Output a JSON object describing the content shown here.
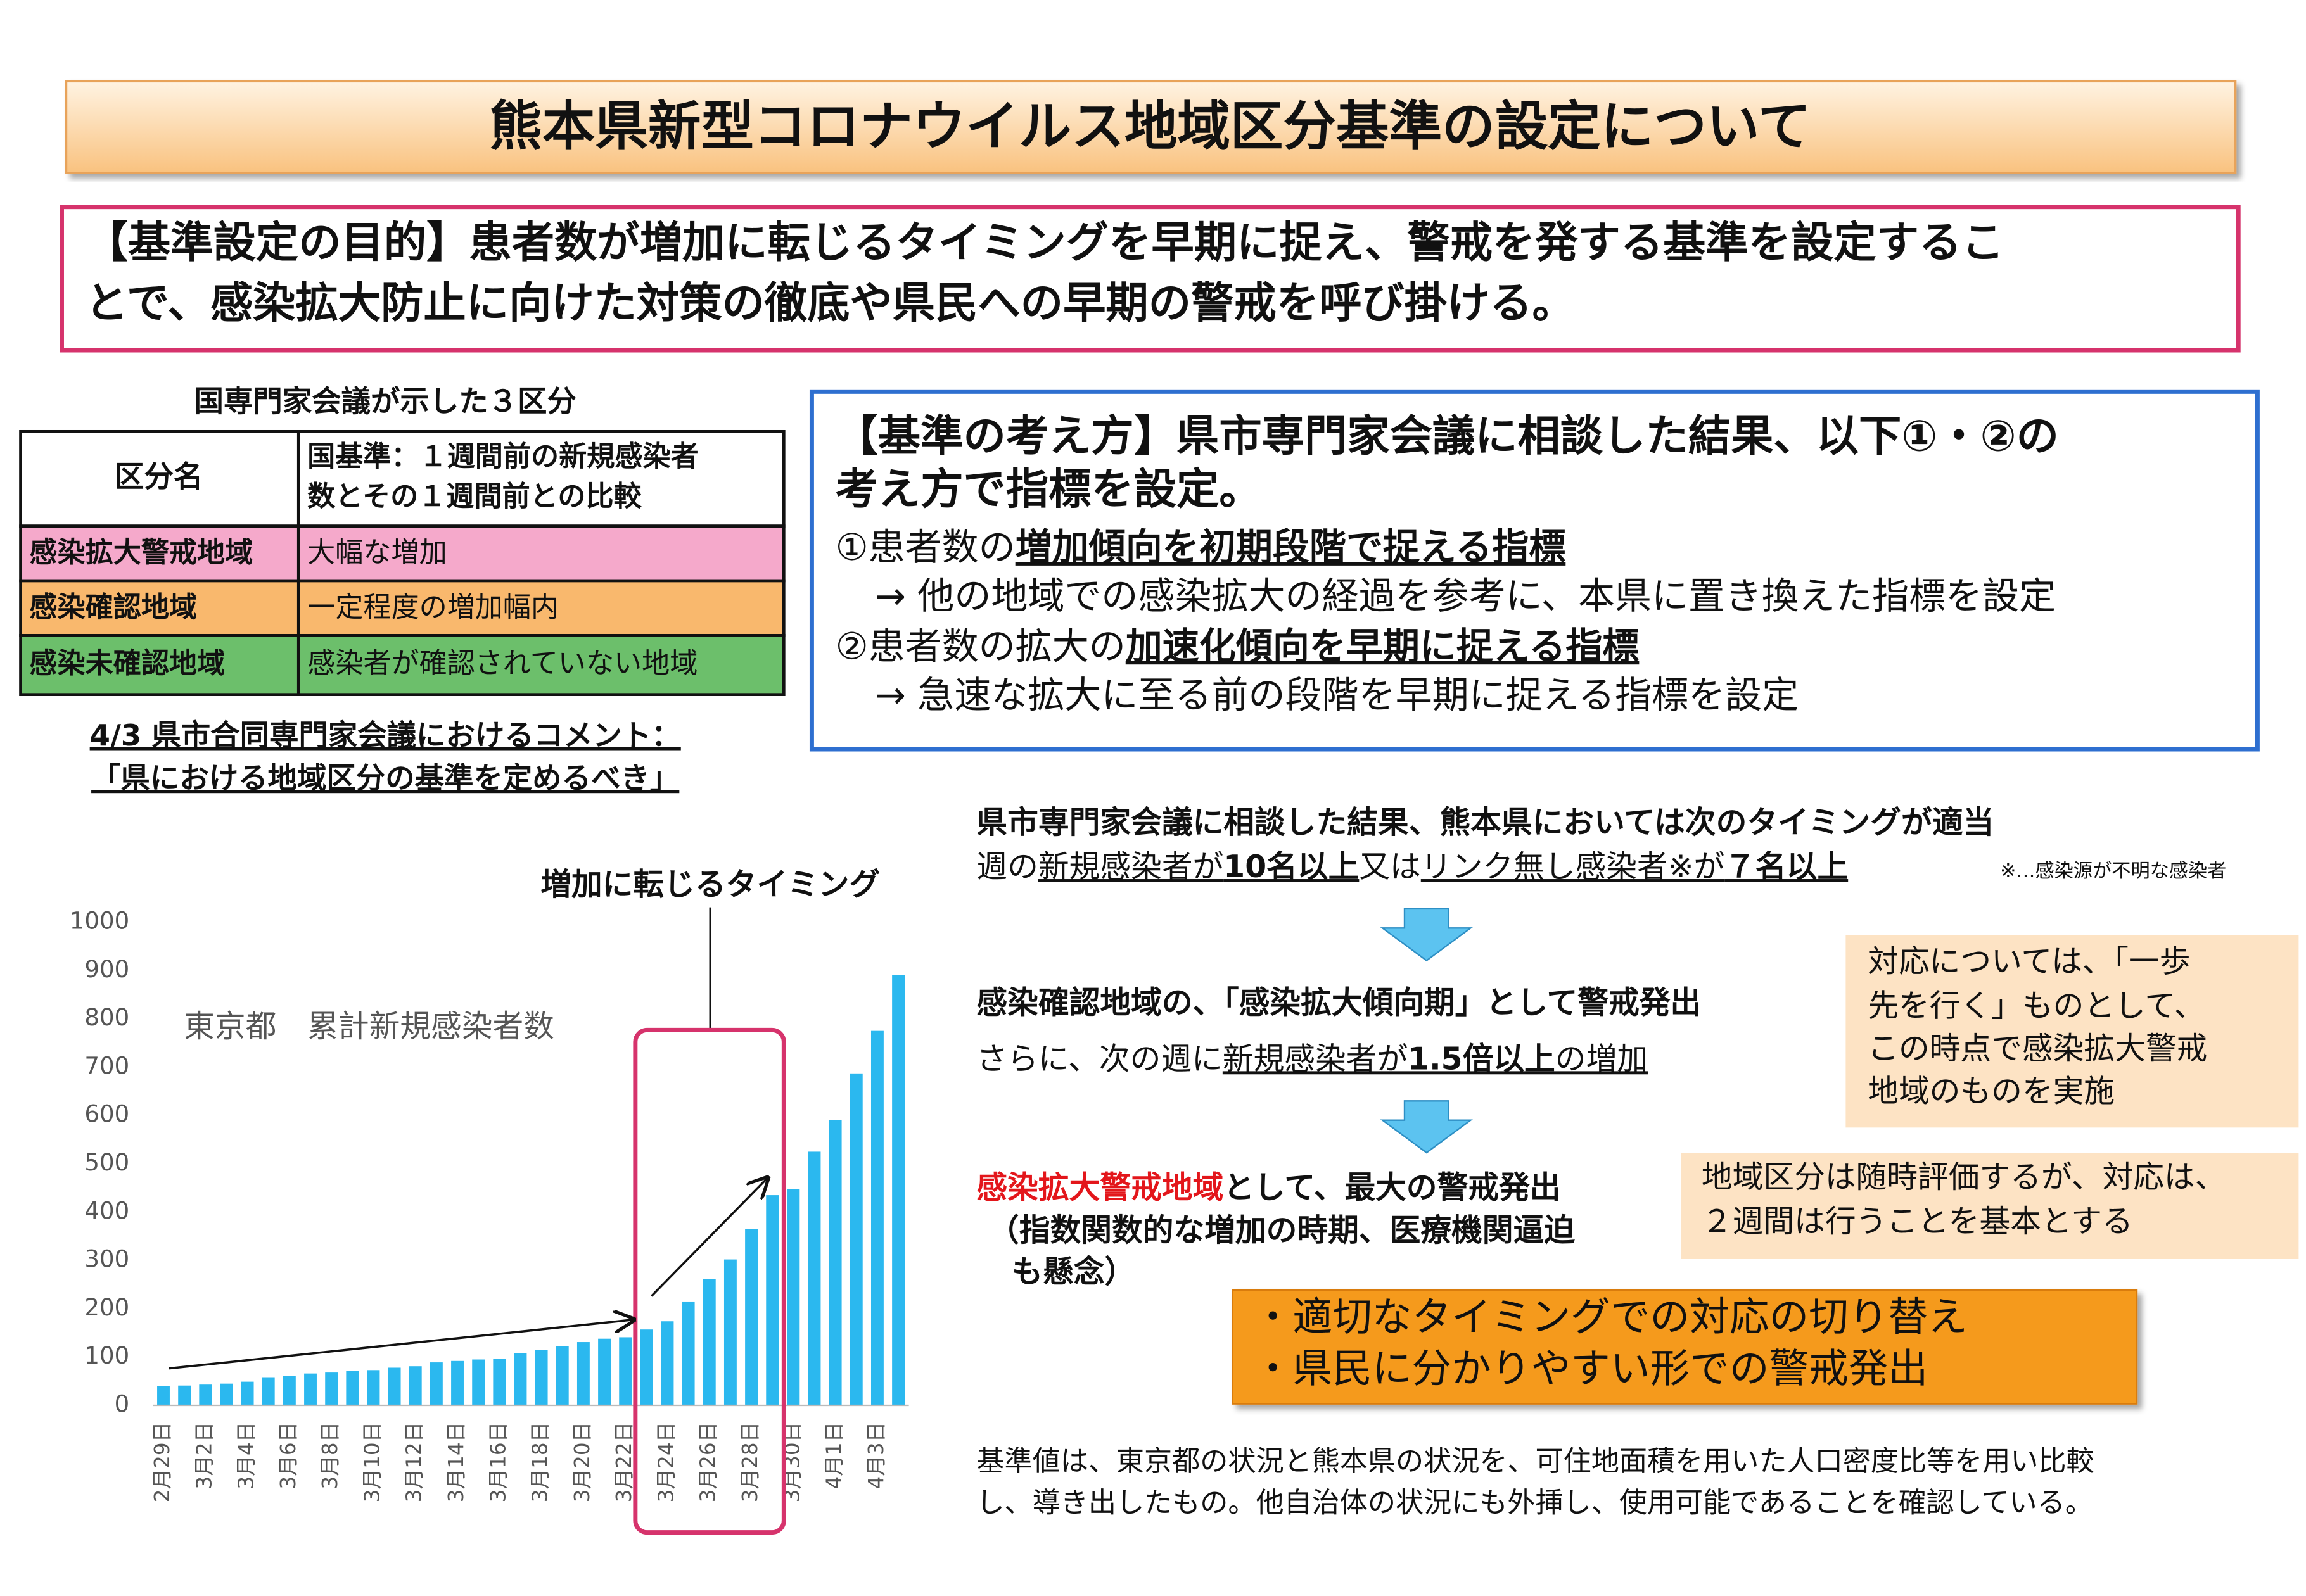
{
  "header": {
    "title": "熊本県新型コロナウイルス地域区分基準の設定について"
  },
  "purpose": {
    "lines": [
      "【基準設定の目的】患者数が増加に転じるタイミングを早期に捉え、警戒を発する基準を設定するこ",
      "とで、感染拡大防止に向けた対策の徹底や県民への早期の警戒を呼び掛ける。"
    ]
  },
  "national_table": {
    "title": "国専門家会議が示した３区分",
    "header": [
      "区分名",
      "国基準：１週間前の新規感染者",
      "数とその１週間前との比較"
    ],
    "rows": [
      [
        "感染拡大警戒地域",
        "大幅な増加"
      ],
      [
        "感染確認地域",
        "一定程度の増加幅内"
      ],
      [
        "感染未確認地域",
        "感染者が確認されていない地域"
      ]
    ]
  },
  "comment": {
    "lines": [
      "4/3 県市合同専門家会議におけるコメント：",
      "「県における地域区分の基準を定めるべき」"
    ]
  },
  "approach": {
    "lines": [
      "【基準の考え方】県市専門家会議に相談した結果、以下①・②の",
      "考え方で指標を設定。"
    ],
    "items": [
      {
        "prefix": "①患者数の",
        "emphasis": "増加傾向を初期段階で捉える指標",
        "note": "→ 他の地域での感染拡大の経過を参考に、本県に置き換えた指標を設定"
      },
      {
        "prefix": "②患者数の拡大の",
        "emphasis": "加速化傾向を早期に捉える指標",
        "note": "→ 急速な拡大に至る前の段階を早期に捉える指標を設定"
      }
    ]
  },
  "timing": {
    "heading": "県市専門家会議に相談した結果、熊本県においては次のタイミングが適当",
    "criteria": [
      "週の",
      "新規感染者が",
      "10名以上",
      "又は",
      "リンク無し感染者※が",
      "７名以上"
    ],
    "footnote": "※…感染源が不明な感染者",
    "stage1": "感染確認地域の、「感染拡大傾向期」として警戒発出",
    "stage1_condition": [
      "さらに、次の週に",
      "新規感染者が",
      "1.5倍以上",
      "の増加"
    ],
    "stage1_note": [
      "対応については、「一歩",
      "先を行く」ものとして、",
      "この時点で感染拡大警戒",
      "地域のものを実施"
    ],
    "stage2": [
      "感染拡大警戒地域",
      "として、最大の警戒発出"
    ],
    "stage2_detail": [
      "（指数関数的な増加の時期、医療機関逼迫",
      "も懸念）"
    ],
    "stage2_note": [
      "地域区分は随時評価するが、対応は、",
      "２週間は行うことを基本とする"
    ],
    "points": [
      "・適切なタイミングでの対応の切り替え",
      "・県民に分かりやすい形での警戒発出"
    ],
    "basis": [
      "基準値は、東京都の状況と熊本県の状況を、可住地面積を用いた人口密度比等を用い比較",
      "し、導き出したもの。他自治体の状況にも外挿し、使用可能であることを確認している。"
    ]
  },
  "chart_data": {
    "type": "bar",
    "title": "東京都　累計新規感染者数",
    "annotation": "増加に転じるタイミング",
    "categories": [
      "2月29日",
      null,
      "3月2日",
      null,
      "3月4日",
      null,
      "3月6日",
      null,
      "3月8日",
      null,
      "3月10日",
      null,
      "3月12日",
      null,
      "3月14日",
      null,
      "3月16日",
      null,
      "3月18日",
      null,
      "3月20日",
      null,
      "3月22日",
      null,
      "3月24日",
      null,
      "3月26日",
      null,
      "3月28日",
      null,
      "3月30日",
      null,
      "4月1日",
      null,
      "4月3日",
      null
    ],
    "values": [
      40,
      41,
      43,
      45,
      49,
      57,
      61,
      66,
      68,
      71,
      73,
      78,
      81,
      89,
      92,
      95,
      96,
      108,
      115,
      122,
      131,
      138,
      141,
      157,
      174,
      215,
      262,
      302,
      365,
      435,
      448,
      525,
      590,
      687,
      775,
      890
    ],
    "color": "#2bb8ef",
    "ylim": [
      0,
      1000
    ],
    "yticks": [
      0,
      100,
      200,
      300,
      400,
      500,
      600,
      700,
      800,
      900,
      1000
    ],
    "grid": false
  }
}
